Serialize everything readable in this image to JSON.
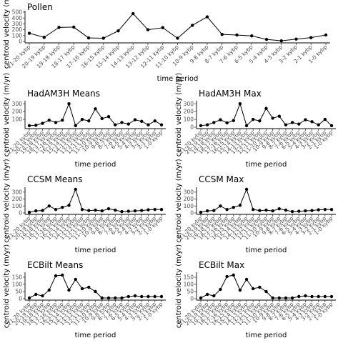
{
  "axis_labels": {
    "x": "time period",
    "y": "centroid velocity (m/yr)"
  },
  "periods": [
    "21-20 kybp",
    "20-19 kybp",
    "19-18 kybp",
    "18-17 kybp",
    "17-16 kybp",
    "16-15 kybp",
    "15-14 kybp",
    "14-13 kybp",
    "13-12 kybp",
    "12-11 kybp",
    "11-10 kybp",
    "10-9 kybp",
    "9-8 kybp",
    "8-7 kybp",
    "7-6 kybp",
    "6-5 kybp",
    "5-4 kybp",
    "4-3 kybp",
    "3-2 kybp",
    "2-1 kybp",
    "1-0 kybp"
  ],
  "chart_data": [
    {
      "type": "line",
      "title": "Pollen",
      "xlabel": "time period",
      "ylabel": "centroid velocity (m/yr)",
      "ylim": [
        0,
        500
      ],
      "yticks": [
        0,
        100,
        200,
        300,
        400,
        500
      ],
      "values": [
        140,
        70,
        240,
        245,
        60,
        55,
        180,
        475,
        200,
        235,
        55,
        275,
        420,
        120,
        110,
        95,
        35,
        10,
        40,
        65,
        110
      ]
    },
    {
      "type": "line",
      "title": "HadAM3H Means",
      "xlabel": "time period",
      "ylabel": "centroid velocity (m/yr)",
      "ylim": [
        0,
        320
      ],
      "yticks": [
        100,
        200,
        300
      ],
      "values": [
        20,
        25,
        50,
        90,
        60,
        90,
        300,
        20,
        100,
        80,
        235,
        110,
        135,
        30,
        60,
        40,
        95,
        75,
        30,
        80,
        30
      ]
    },
    {
      "type": "line",
      "title": "HadAM3H Max",
      "xlabel": "time period",
      "ylabel": "centroid velocity (m/yr)",
      "ylim": [
        0,
        320
      ],
      "yticks": [
        0,
        100,
        200,
        300
      ],
      "values": [
        20,
        30,
        60,
        95,
        55,
        85,
        300,
        20,
        100,
        80,
        240,
        115,
        140,
        30,
        60,
        40,
        95,
        70,
        30,
        100,
        20
      ]
    },
    {
      "type": "line",
      "title": "CCSM Means",
      "xlabel": "time period",
      "ylabel": "centroid velocity (m/yr)",
      "ylim": [
        0,
        350
      ],
      "yticks": [
        0,
        100,
        200,
        300
      ],
      "values": [
        10,
        30,
        35,
        100,
        50,
        80,
        110,
        340,
        50,
        35,
        40,
        30,
        60,
        40,
        20,
        25,
        30,
        35,
        45,
        50,
        50
      ]
    },
    {
      "type": "line",
      "title": "CCSM Max",
      "xlabel": "time period",
      "ylabel": "centroid velocity (m/yr)",
      "ylim": [
        0,
        350
      ],
      "yticks": [
        0,
        100,
        200,
        300
      ],
      "values": [
        10,
        30,
        35,
        100,
        50,
        80,
        110,
        340,
        50,
        35,
        40,
        30,
        60,
        40,
        20,
        25,
        30,
        35,
        45,
        50,
        50
      ]
    },
    {
      "type": "line",
      "title": "ECBilt Means",
      "xlabel": "time period",
      "ylabel": "centroid velocity (m/yr)",
      "ylim": [
        0,
        175
      ],
      "yticks": [
        0,
        50,
        100,
        150
      ],
      "values": [
        5,
        30,
        20,
        60,
        160,
        165,
        60,
        135,
        70,
        80,
        50,
        5,
        5,
        5,
        5,
        15,
        20,
        15,
        15,
        15,
        15
      ]
    },
    {
      "type": "line",
      "title": "ECBilt Max",
      "xlabel": "time period",
      "ylabel": "centroid velocity (m/yr)",
      "ylim": [
        0,
        175
      ],
      "yticks": [
        0,
        50,
        100,
        150
      ],
      "values": [
        5,
        30,
        20,
        65,
        155,
        165,
        60,
        135,
        70,
        80,
        50,
        5,
        5,
        5,
        5,
        15,
        20,
        15,
        15,
        15,
        15
      ]
    }
  ]
}
